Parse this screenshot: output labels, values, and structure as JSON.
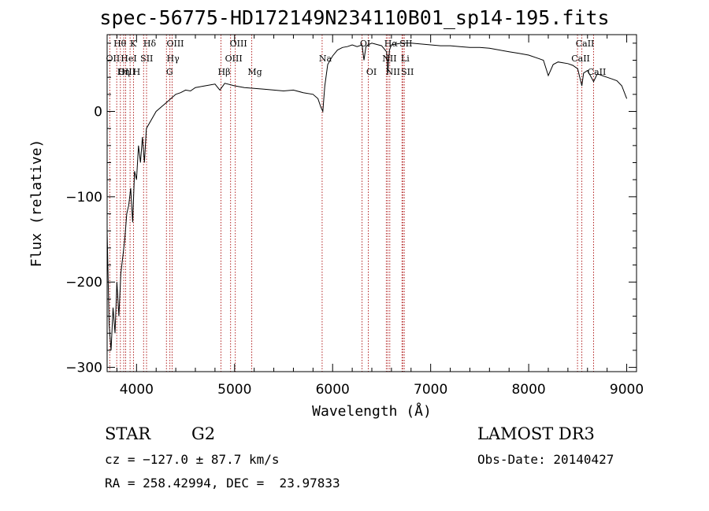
{
  "title": "spec-56775-HD172149N234110B01_sp14-195.fits",
  "info": {
    "object_class": "STAR",
    "subclass": "G2",
    "survey": "LAMOST DR3",
    "cz": "cz = −127.0 ± 87.7 km/s",
    "obs_date": "Obs-Date: 20140427",
    "coords": "RA = 258.42994, DEC =  23.97833"
  },
  "colors": {
    "line": "#000000",
    "marker": "#b22222",
    "axis": "#000000"
  },
  "chart_data": {
    "type": "line",
    "title": "spec-56775-HD172149N234110B01_sp14-195.fits",
    "xlabel": "Wavelength (Å)",
    "ylabel": "Flux (relative)",
    "xlim": [
      3700,
      9100
    ],
    "ylim": [
      -305,
      90
    ],
    "xticks": [
      4000,
      5000,
      6000,
      7000,
      8000,
      9000
    ],
    "yticks": [
      0,
      -100,
      -200,
      -300
    ],
    "grid": false,
    "series": [
      {
        "x": [
          3700,
          3720,
          3740,
          3760,
          3780,
          3800,
          3820,
          3840,
          3860,
          3880,
          3900,
          3920,
          3940,
          3960,
          3980,
          4000,
          4020,
          4040,
          4060,
          4080,
          4100,
          4150,
          4200,
          4250,
          4300,
          4350,
          4400,
          4450,
          4500,
          4550,
          4600,
          4700,
          4800,
          4850,
          4900,
          5000,
          5100,
          5200,
          5300,
          5400,
          5500,
          5600,
          5700,
          5800,
          5850,
          5880,
          5900,
          5920,
          5950,
          6000,
          6050,
          6100,
          6150,
          6200,
          6250,
          6300,
          6320,
          6340,
          6360,
          6400,
          6500,
          6550,
          6563,
          6580,
          6600,
          6700,
          6800,
          6900,
          7000,
          7100,
          7200,
          7300,
          7400,
          7500,
          7600,
          7700,
          7800,
          7900,
          8000,
          8100,
          8150,
          8200,
          8250,
          8300,
          8400,
          8450,
          8500,
          8542,
          8560,
          8600,
          8662,
          8700,
          8750,
          8800,
          8850,
          8900,
          8950,
          9000
        ],
        "y": [
          -140,
          -250,
          -280,
          -230,
          -260,
          -200,
          -240,
          -190,
          -170,
          -150,
          -120,
          -110,
          -90,
          -130,
          -70,
          -80,
          -40,
          -60,
          -30,
          -60,
          -20,
          -10,
          0,
          5,
          10,
          15,
          20,
          22,
          25,
          24,
          28,
          30,
          32,
          25,
          33,
          30,
          28,
          27,
          26,
          25,
          24,
          25,
          22,
          20,
          15,
          5,
          0,
          30,
          55,
          65,
          72,
          75,
          76,
          78,
          76,
          78,
          60,
          76,
          78,
          80,
          77,
          70,
          45,
          72,
          78,
          80,
          80,
          79,
          78,
          77,
          77,
          76,
          75,
          75,
          74,
          72,
          70,
          68,
          66,
          62,
          60,
          42,
          55,
          58,
          56,
          54,
          50,
          30,
          45,
          48,
          35,
          44,
          42,
          40,
          38,
          36,
          30,
          15
        ]
      }
    ],
    "line_markers": [
      {
        "name": "Hθ",
        "x": 3798,
        "row": 0
      },
      {
        "name": "K",
        "x": 3934,
        "row": 0
      },
      {
        "name": "Hδ",
        "x": 4102,
        "row": 0
      },
      {
        "name": "OII",
        "x": 3727,
        "row": 1
      },
      {
        "name": "HeI",
        "x": 3889,
        "row": 1
      },
      {
        "name": "SII",
        "x": 4072,
        "row": 1
      },
      {
        "name": "OIII",
        "x": 3869,
        "row": 2
      },
      {
        "name": "Hη",
        "x": 3835,
        "row": 2
      },
      {
        "name": "H",
        "x": 3969,
        "row": 2
      },
      {
        "name": "OIII",
        "x": 4363,
        "row": 0
      },
      {
        "name": "Hγ",
        "x": 4340,
        "row": 1
      },
      {
        "name": "G",
        "x": 4305,
        "row": 2
      },
      {
        "name": "Hβ",
        "x": 4861,
        "row": 2
      },
      {
        "name": "OIII",
        "x": 5007,
        "row": 0
      },
      {
        "name": "OIII",
        "x": 4959,
        "row": 1
      },
      {
        "name": "Mg",
        "x": 5175,
        "row": 2
      },
      {
        "name": "Na",
        "x": 5893,
        "row": 1
      },
      {
        "name": "OI",
        "x": 6300,
        "row": 0
      },
      {
        "name": "OI",
        "x": 6364,
        "row": 2
      },
      {
        "name": "Hα",
        "x": 6563,
        "row": 0
      },
      {
        "name": "SII",
        "x": 6716,
        "row": 0
      },
      {
        "name": "NII",
        "x": 6548,
        "row": 1
      },
      {
        "name": "Li",
        "x": 6708,
        "row": 1
      },
      {
        "name": "NII",
        "x": 6583,
        "row": 2
      },
      {
        "name": "SII",
        "x": 6731,
        "row": 2
      },
      {
        "name": "CaII",
        "x": 8542,
        "row": 0
      },
      {
        "name": "CaII",
        "x": 8498,
        "row": 1
      },
      {
        "name": "CaII",
        "x": 8662,
        "row": 2
      }
    ]
  }
}
